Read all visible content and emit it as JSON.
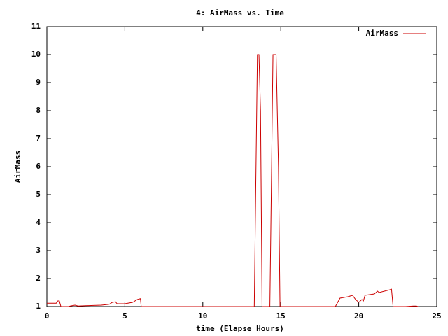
{
  "chart_data": {
    "type": "line",
    "title": "4: AirMass vs. Time",
    "xlabel": "time (Elapse Hours)",
    "ylabel": "AirMass",
    "x": [
      0,
      0.6,
      0.7,
      0.8,
      0.9,
      1.4,
      1.5,
      1.8,
      2.0,
      2.5,
      3.0,
      3.5,
      4.0,
      4.2,
      4.4,
      4.5,
      5.0,
      5.5,
      5.8,
      6.0,
      6.05,
      13.3,
      13.5,
      13.6,
      13.7,
      13.8,
      14.3,
      14.5,
      14.7,
      14.85,
      14.95,
      18.5,
      18.8,
      19.3,
      19.6,
      19.8,
      20.0,
      20.2,
      20.3,
      20.4,
      21.0,
      21.2,
      21.3,
      22.0,
      22.1,
      22.2,
      23.0,
      23.5,
      23.7,
      23.8
    ],
    "series": [
      {
        "name": "AirMass",
        "color": "#cc0000",
        "values": [
          1.12,
          1.12,
          1.2,
          1.2,
          1.0,
          1.0,
          1.02,
          1.05,
          1.02,
          1.03,
          1.04,
          1.05,
          1.08,
          1.15,
          1.17,
          1.1,
          1.1,
          1.15,
          1.25,
          1.28,
          1.0,
          1.0,
          10.0,
          10.0,
          8.0,
          1.0,
          1.0,
          10.0,
          10.0,
          6.0,
          1.0,
          1.0,
          1.3,
          1.35,
          1.4,
          1.25,
          1.15,
          1.25,
          1.2,
          1.4,
          1.45,
          1.55,
          1.5,
          1.6,
          1.62,
          1.0,
          1.0,
          1.02,
          1.02,
          1.0
        ]
      }
    ],
    "xlim": [
      0,
      25
    ],
    "xticks": [
      0,
      5,
      10,
      15,
      20,
      25
    ],
    "ylim": [
      1,
      11
    ],
    "yticks": [
      1,
      2,
      3,
      4,
      5,
      6,
      7,
      8,
      9,
      10,
      11
    ],
    "grid": false,
    "legend": "top-right"
  }
}
